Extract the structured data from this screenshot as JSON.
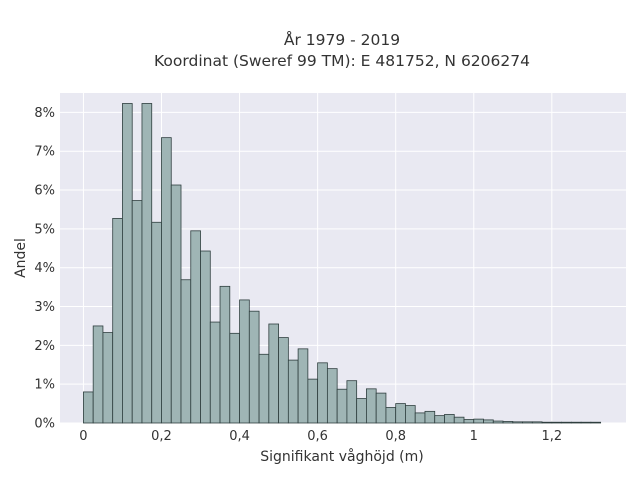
{
  "chart_data": {
    "type": "bar",
    "title_lines": [
      "År 1979 - 2019",
      "Koordinat (Sweref 99 TM): E 481752, N 6206274"
    ],
    "xlabel": "Signifikant våghöjd (m)",
    "ylabel": "Andel",
    "bin_width": 0.025,
    "x": [
      0.0125,
      0.0375,
      0.0625,
      0.0875,
      0.1125,
      0.1375,
      0.1625,
      0.1875,
      0.2125,
      0.2375,
      0.2625,
      0.2875,
      0.3125,
      0.3375,
      0.3625,
      0.3875,
      0.4125,
      0.4375,
      0.4625,
      0.4875,
      0.5125,
      0.5375,
      0.5625,
      0.5875,
      0.6125,
      0.6375,
      0.6625,
      0.6875,
      0.7125,
      0.7375,
      0.7625,
      0.7875,
      0.8125,
      0.8375,
      0.8625,
      0.8875,
      0.9125,
      0.9375,
      0.9625,
      0.9875,
      1.0125,
      1.0375,
      1.0625,
      1.0875,
      1.1125,
      1.1375,
      1.1625,
      1.1875,
      1.2125,
      1.2375,
      1.2625,
      1.2875,
      1.3125
    ],
    "values": [
      0.8,
      2.5,
      2.33,
      5.27,
      8.23,
      5.73,
      8.23,
      5.17,
      7.35,
      6.13,
      3.69,
      4.95,
      4.43,
      2.6,
      3.52,
      2.31,
      3.17,
      2.88,
      1.77,
      2.55,
      2.2,
      1.62,
      1.91,
      1.13,
      1.55,
      1.4,
      0.87,
      1.09,
      0.63,
      0.88,
      0.77,
      0.4,
      0.5,
      0.45,
      0.26,
      0.3,
      0.19,
      0.22,
      0.15,
      0.09,
      0.1,
      0.08,
      0.05,
      0.04,
      0.03,
      0.03,
      0.03,
      0.02,
      0.02,
      0.02,
      0.02,
      0.02,
      0.02
    ],
    "xlim": [
      -0.06,
      1.39
    ],
    "ylim": [
      0,
      8.5
    ],
    "x_ticks": [
      0,
      0.2,
      0.4,
      0.6,
      0.8,
      1,
      1.2
    ],
    "x_tick_labels": [
      "0",
      "0,2",
      "0,4",
      "0,6",
      "0,8",
      "1",
      "1,2"
    ],
    "y_ticks": [
      0,
      1,
      2,
      3,
      4,
      5,
      6,
      7,
      8
    ],
    "y_tick_labels": [
      "0%",
      "1%",
      "2%",
      "3%",
      "4%",
      "5%",
      "6%",
      "7%",
      "8%"
    ],
    "grid": true,
    "colors": {
      "bar_fill": "#9fb5b5",
      "bar_edge": "#2f3f3f",
      "plot_background": "#e9e9f2",
      "grid": "#ffffff"
    }
  }
}
